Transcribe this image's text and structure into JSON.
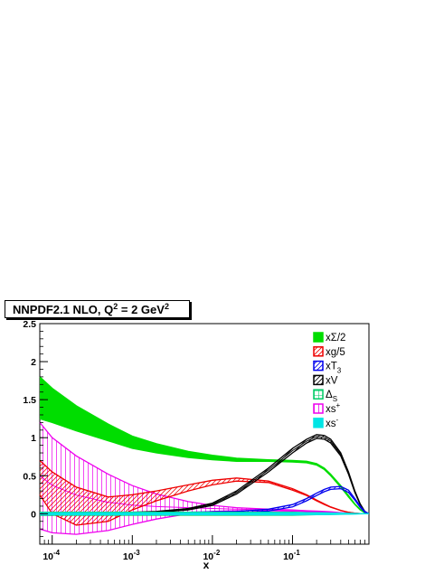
{
  "chart_data": {
    "type": "area",
    "title": "NNPDF2.1 NLO, Q",
    "title_sup1": "2",
    "title_mid": " = 2 GeV",
    "title_sup2": "2",
    "xlabel": "x",
    "ylabel": "",
    "x_scale": "log",
    "xlim": [
      7e-05,
      0.9
    ],
    "ylim": [
      -0.4,
      2.5
    ],
    "grid": false,
    "legend_position": "top-right",
    "x_ticks": [
      {
        "value": 0.0001,
        "base": "10",
        "exp": "-4"
      },
      {
        "value": 0.001,
        "base": "10",
        "exp": "-3"
      },
      {
        "value": 0.01,
        "base": "10",
        "exp": "-2"
      },
      {
        "value": 0.1,
        "base": "10",
        "exp": "-1"
      }
    ],
    "y_ticks": [
      {
        "value": 0,
        "label": "0"
      },
      {
        "value": 0.5,
        "label": "0.5"
      },
      {
        "value": 1,
        "label": "1"
      },
      {
        "value": 1.5,
        "label": "1.5"
      },
      {
        "value": 2,
        "label": "2"
      },
      {
        "value": 2.5,
        "label": "2.5"
      }
    ],
    "x": [
      7e-05,
      0.0001,
      0.0002,
      0.0005,
      0.001,
      0.002,
      0.005,
      0.01,
      0.02,
      0.05,
      0.1,
      0.15,
      0.2,
      0.25,
      0.3,
      0.4,
      0.5,
      0.6,
      0.7,
      0.8,
      0.9
    ],
    "series": [
      {
        "name": "xΣ/2",
        "label": "xΣ/2",
        "sub": "",
        "sup": "",
        "color": "#00dd00",
        "fill": "solid",
        "upper": [
          1.8,
          1.65,
          1.42,
          1.18,
          1.02,
          0.92,
          0.82,
          0.77,
          0.73,
          0.71,
          0.7,
          0.69,
          0.66,
          0.6,
          0.52,
          0.37,
          0.24,
          0.13,
          0.06,
          0.015,
          0.0
        ],
        "lower": [
          1.25,
          1.2,
          1.09,
          0.96,
          0.86,
          0.8,
          0.74,
          0.71,
          0.69,
          0.69,
          0.68,
          0.67,
          0.64,
          0.58,
          0.5,
          0.35,
          0.22,
          0.12,
          0.05,
          0.012,
          0.0
        ]
      },
      {
        "name": "xg/5",
        "label": "xg/5",
        "sub": "",
        "sup": "",
        "color": "#ee0000",
        "fill": "hatch",
        "upper": [
          0.7,
          0.55,
          0.35,
          0.22,
          0.25,
          0.3,
          0.38,
          0.44,
          0.47,
          0.43,
          0.33,
          0.25,
          0.18,
          0.13,
          0.09,
          0.045,
          0.02,
          0.008,
          0.003,
          0.001,
          0.0
        ],
        "lower": [
          0.25,
          0.0,
          -0.15,
          -0.1,
          0.05,
          0.17,
          0.3,
          0.38,
          0.43,
          0.41,
          0.31,
          0.24,
          0.17,
          0.12,
          0.085,
          0.042,
          0.018,
          0.007,
          0.002,
          0.0,
          0.0
        ]
      },
      {
        "name": "xT3",
        "label": "xT",
        "sub": "3",
        "sup": "",
        "color": "#0000ee",
        "fill": "hatch",
        "upper": [
          0.02,
          0.02,
          0.02,
          0.02,
          0.02,
          0.02,
          0.02,
          0.025,
          0.03,
          0.06,
          0.12,
          0.2,
          0.27,
          0.32,
          0.35,
          0.36,
          0.31,
          0.2,
          0.1,
          0.03,
          0.0
        ],
        "lower": [
          -0.02,
          -0.02,
          -0.01,
          -0.01,
          -0.01,
          0.0,
          0.0,
          0.005,
          0.01,
          0.035,
          0.09,
          0.17,
          0.24,
          0.29,
          0.32,
          0.33,
          0.28,
          0.18,
          0.085,
          0.02,
          0.0
        ]
      },
      {
        "name": "xV",
        "label": "xV",
        "sub": "",
        "sup": "",
        "color": "#000000",
        "fill": "hatch",
        "upper": [
          0.01,
          0.01,
          0.01,
          0.015,
          0.02,
          0.03,
          0.07,
          0.14,
          0.3,
          0.6,
          0.86,
          0.98,
          1.04,
          1.03,
          0.98,
          0.8,
          0.55,
          0.3,
          0.13,
          0.03,
          0.0
        ],
        "lower": [
          -0.01,
          -0.01,
          0.0,
          0.005,
          0.01,
          0.02,
          0.05,
          0.11,
          0.26,
          0.55,
          0.8,
          0.93,
          0.99,
          0.98,
          0.93,
          0.76,
          0.52,
          0.28,
          0.12,
          0.025,
          0.0
        ]
      },
      {
        "name": "ΔS",
        "label": "Δ",
        "sub": "S",
        "sup": "",
        "color": "#00cc66",
        "fill": "grid",
        "upper": [
          0.02,
          0.02,
          0.02,
          0.02,
          0.02,
          0.02,
          0.02,
          0.02,
          0.02,
          0.02,
          0.02,
          0.015,
          0.012,
          0.01,
          0.008,
          0.005,
          0.003,
          0.001,
          0.0,
          0.0,
          0.0
        ],
        "lower": [
          -0.02,
          -0.02,
          -0.02,
          -0.02,
          -0.02,
          -0.02,
          -0.02,
          -0.02,
          -0.02,
          -0.02,
          -0.02,
          -0.015,
          -0.012,
          -0.01,
          -0.008,
          -0.005,
          -0.003,
          -0.001,
          0.0,
          0.0,
          0.0
        ]
      },
      {
        "name": "xs+",
        "label": "xs",
        "sub": "",
        "sup": "+",
        "color": "#ee00ee",
        "fill": "vhatch",
        "upper": [
          1.2,
          1.0,
          0.76,
          0.52,
          0.37,
          0.26,
          0.16,
          0.11,
          0.08,
          0.06,
          0.05,
          0.04,
          0.035,
          0.03,
          0.025,
          0.015,
          0.008,
          0.003,
          0.001,
          0.0,
          0.0
        ],
        "lower": [
          -0.2,
          -0.25,
          -0.27,
          -0.22,
          -0.14,
          -0.07,
          0.0,
          0.03,
          0.04,
          0.04,
          0.035,
          0.03,
          0.025,
          0.02,
          0.015,
          0.01,
          0.005,
          0.002,
          0.0,
          0.0,
          0.0
        ]
      },
      {
        "name": "xs-",
        "label": "xs",
        "sub": "",
        "sup": "-",
        "color": "#00e5e5",
        "fill": "solid",
        "upper": [
          0.012,
          0.012,
          0.012,
          0.012,
          0.012,
          0.012,
          0.012,
          0.012,
          0.013,
          0.014,
          0.014,
          0.013,
          0.012,
          0.011,
          0.01,
          0.008,
          0.006,
          0.004,
          0.002,
          0.001,
          0.0
        ],
        "lower": [
          -0.012,
          -0.012,
          -0.012,
          -0.012,
          -0.012,
          -0.012,
          -0.012,
          -0.012,
          -0.013,
          -0.014,
          -0.014,
          -0.013,
          -0.012,
          -0.011,
          -0.01,
          -0.008,
          -0.006,
          -0.004,
          -0.002,
          -0.001,
          0.0
        ]
      }
    ]
  }
}
